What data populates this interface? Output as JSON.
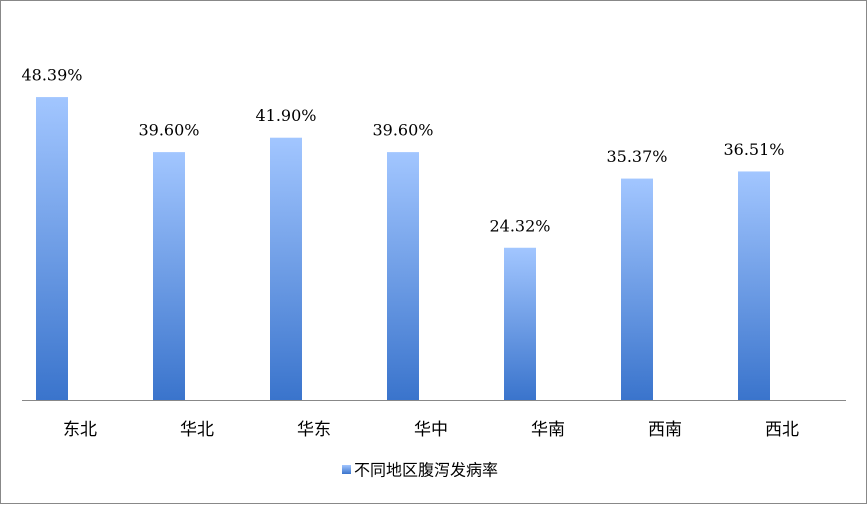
{
  "chart_data": {
    "type": "bar",
    "categories": [
      "东北",
      "华北",
      "华东",
      "华中",
      "华南",
      "西南",
      "西北"
    ],
    "series": [
      {
        "name": "不同地区腹泻发病率",
        "color": "#5b93e0",
        "values": [
          48.39,
          39.6,
          41.9,
          39.6,
          24.32,
          35.37,
          36.51
        ],
        "value_labels": [
          "48.39%",
          "39.60%",
          "41.90%",
          "39.60%",
          "24.32%",
          "35.37%",
          "36.51%"
        ]
      }
    ],
    "legend": "bottom"
  }
}
